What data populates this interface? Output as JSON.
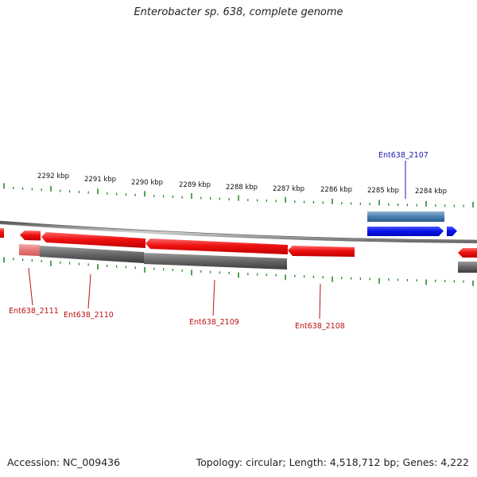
{
  "title": "Enterobacter sp. 638, complete genome",
  "footer": {
    "accession": "Accession: NC_009436",
    "summary": "Topology: circular; Length: 4,518,712 bp; Genes: 4,222"
  },
  "ruler": {
    "labels": [
      "2292 kbp",
      "2291 kbp",
      "2290 kbp",
      "2289 kbp",
      "2288 kbp",
      "2287 kbp",
      "2286 kbp",
      "2285 kbp",
      "2284 kbp"
    ]
  },
  "genes": [
    {
      "name": "Ent638_2111",
      "strand": "minus"
    },
    {
      "name": "Ent638_2110",
      "strand": "minus"
    },
    {
      "name": "Ent638_2109",
      "strand": "minus"
    },
    {
      "name": "Ent638_2108",
      "strand": "minus"
    },
    {
      "name": "Ent638_2107",
      "strand": "plus"
    }
  ],
  "colors": {
    "minus_cds": "#ee1111",
    "plus_cds": "#0a14ee",
    "minus_gene": "#666666",
    "plus_gene": "#4a7fb0",
    "pseudo_gene": "#e87878",
    "tick": "#2a8a2a",
    "minus_label": "#bb1111",
    "plus_label": "#1a1aaa",
    "backbone": "#9a9a9a"
  }
}
